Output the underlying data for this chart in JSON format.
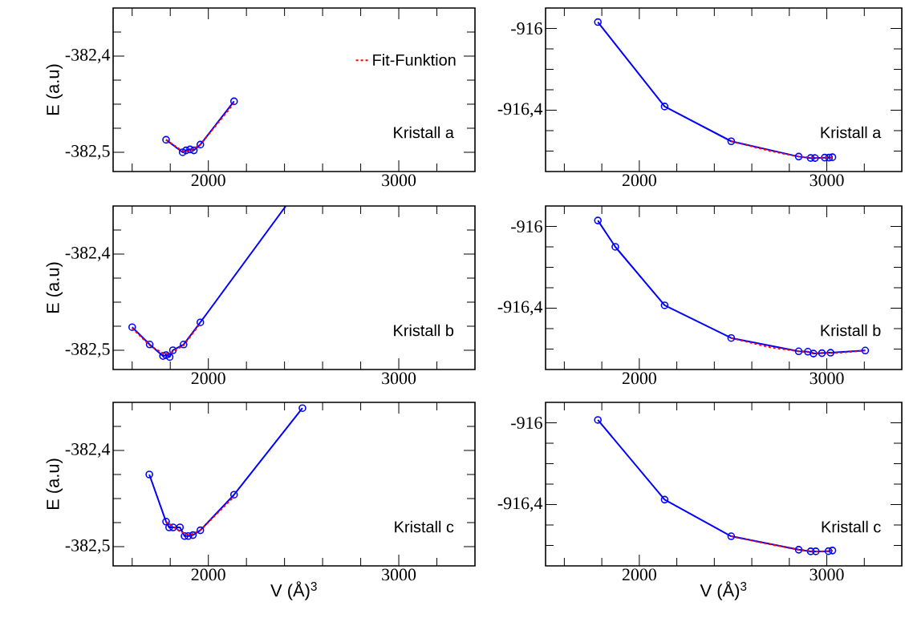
{
  "chart_data": [
    {
      "type": "line",
      "ylabel": "E (a.u)",
      "annotations": [
        "Kristall a"
      ],
      "legend": "top right",
      "xlim": [
        1500,
        3400
      ],
      "ylim": [
        -382.52,
        -382.35
      ],
      "xticks": [
        {
          "value": 1600,
          "label": null
        },
        {
          "value": 1800,
          "label": null
        },
        2000,
        {
          "value": 2200,
          "label": null
        },
        {
          "value": 2400,
          "label": null
        },
        {
          "value": 2600,
          "label": null
        },
        {
          "value": 2800,
          "label": null
        },
        3000,
        {
          "value": 3200,
          "label": null
        }
      ],
      "yticks": [
        {
          "value": -382.5,
          "label": "-382,5"
        },
        {
          "value": -382.475,
          "label": null
        },
        {
          "value": -382.45,
          "label": null
        },
        {
          "value": -382.425,
          "label": null
        },
        {
          "value": -382.4,
          "label": "-382,4"
        },
        {
          "value": -382.375,
          "label": null
        }
      ],
      "series": [
        {
          "color": "#0000ff",
          "marker": "circle",
          "line_style": "solid",
          "x": [
            1778,
            1865,
            1883,
            1904,
            1924,
            1958,
            2135
          ],
          "values": [
            -382.487,
            -382.5,
            -382.498,
            -382.497,
            -382.498,
            -382.492,
            -382.447
          ]
        },
        {
          "name": "Fit-Funktion",
          "color": "#ff0000",
          "marker": "none",
          "line_style": "dashed",
          "x": [
            1778,
            1865,
            1900,
            1958,
            2135
          ],
          "values": [
            -382.487,
            -382.499,
            -382.499,
            -382.492,
            -382.449
          ]
        }
      ]
    },
    {
      "type": "line",
      "annotations": [
        "Kristall a"
      ],
      "xlim": [
        1500,
        3400
      ],
      "ylim": [
        -916.7,
        -915.9
      ],
      "xticks": [
        {
          "value": 1600,
          "label": null
        },
        {
          "value": 1800,
          "label": null
        },
        2000,
        {
          "value": 2200,
          "label": null
        },
        {
          "value": 2400,
          "label": null
        },
        {
          "value": 2600,
          "label": null
        },
        {
          "value": 2800,
          "label": null
        },
        3000,
        {
          "value": 3200,
          "label": null
        }
      ],
      "yticks": [
        {
          "value": -916.6,
          "label": null
        },
        {
          "value": -916.5,
          "label": null
        },
        {
          "value": -916.4,
          "label": "-916,4"
        },
        {
          "value": -916.3,
          "label": null
        },
        {
          "value": -916.2,
          "label": null
        },
        {
          "value": -916.1,
          "label": null
        },
        -916
      ],
      "series": [
        {
          "color": "#0000ff",
          "marker": "circle",
          "line_style": "solid",
          "x": [
            1779,
            2135,
            2490,
            2850,
            2914,
            2937,
            2989,
            3012,
            3030
          ],
          "values": [
            -915.969,
            -916.382,
            -916.552,
            -916.627,
            -916.634,
            -916.634,
            -916.632,
            -916.632,
            -916.63
          ]
        },
        {
          "color": "#ff0000",
          "marker": "none",
          "line_style": "dashed",
          "x": [
            2490,
            2700,
            2850,
            2950,
            3030
          ],
          "values": [
            -916.552,
            -916.6,
            -916.627,
            -916.634,
            -916.632
          ]
        }
      ]
    },
    {
      "type": "line",
      "ylabel": "E (a.u)",
      "annotations": [
        "Kristall b"
      ],
      "xlim": [
        1500,
        3400
      ],
      "ylim": [
        -382.52,
        -382.35
      ],
      "xticks": [
        {
          "value": 1600,
          "label": null
        },
        {
          "value": 1800,
          "label": null
        },
        2000,
        {
          "value": 2200,
          "label": null
        },
        {
          "value": 2400,
          "label": null
        },
        {
          "value": 2600,
          "label": null
        },
        {
          "value": 2800,
          "label": null
        },
        3000,
        {
          "value": 3200,
          "label": null
        }
      ],
      "yticks": [
        {
          "value": -382.5,
          "label": "-382,5"
        },
        {
          "value": -382.475,
          "label": null
        },
        {
          "value": -382.45,
          "label": null
        },
        {
          "value": -382.425,
          "label": null
        },
        {
          "value": -382.4,
          "label": "-382,4"
        },
        {
          "value": -382.375,
          "label": null
        }
      ],
      "series": [
        {
          "color": "#0000ff",
          "marker": "circle",
          "line_style": "solid",
          "x": [
            1600,
            1692,
            1762,
            1778,
            1797,
            1814,
            1870,
            1958
          ],
          "values": [
            -382.476,
            -382.494,
            -382.506,
            -382.505,
            -382.507,
            -382.5,
            -382.494,
            -382.471
          ]
        },
        {
          "color": "#0000ff",
          "marker": "none",
          "line_style": "solid",
          "x": [
            1958,
            2407
          ],
          "values": [
            -382.471,
            -382.35
          ]
        },
        {
          "color": "#ff0000",
          "marker": "none",
          "line_style": "dashed",
          "x": [
            1600,
            1692,
            1770,
            1800,
            1870,
            1950
          ],
          "values": [
            -382.477,
            -382.495,
            -382.504,
            -382.503,
            -382.495,
            -382.474
          ]
        }
      ]
    },
    {
      "type": "line",
      "annotations": [
        "Kristall b"
      ],
      "xlim": [
        1500,
        3400
      ],
      "ylim": [
        -916.7,
        -915.9
      ],
      "xticks": [
        {
          "value": 1600,
          "label": null
        },
        {
          "value": 1800,
          "label": null
        },
        2000,
        {
          "value": 2200,
          "label": null
        },
        {
          "value": 2400,
          "label": null
        },
        {
          "value": 2600,
          "label": null
        },
        {
          "value": 2800,
          "label": null
        },
        3000,
        {
          "value": 3200,
          "label": null
        }
      ],
      "yticks": [
        {
          "value": -916.6,
          "label": null
        },
        {
          "value": -916.5,
          "label": null
        },
        {
          "value": -916.4,
          "label": "-916,4"
        },
        {
          "value": -916.3,
          "label": null
        },
        {
          "value": -916.2,
          "label": null
        },
        {
          "value": -916.1,
          "label": null
        },
        -916
      ],
      "series": [
        {
          "color": "#0000ff",
          "marker": "circle",
          "line_style": "solid",
          "x": [
            1779,
            1872,
            2135,
            2490,
            2850,
            2899,
            2929,
            2974,
            3020,
            3205
          ],
          "values": [
            -915.971,
            -916.1,
            -916.386,
            -916.546,
            -916.611,
            -916.613,
            -916.622,
            -916.62,
            -916.618,
            -916.607
          ]
        },
        {
          "color": "#ff0000",
          "marker": "none",
          "line_style": "dashed",
          "x": [
            2490,
            2700,
            2850,
            2950,
            3050,
            3205
          ],
          "values": [
            -916.546,
            -916.592,
            -916.611,
            -916.62,
            -916.619,
            -916.607
          ]
        }
      ]
    },
    {
      "type": "line",
      "ylabel": "E (a.u)",
      "xlabel": "V (Å)$^{3}$",
      "annotations": [
        "Kristall c"
      ],
      "xlim": [
        1500,
        3400
      ],
      "ylim": [
        -382.52,
        -382.35
      ],
      "xticks": [
        {
          "value": 1600,
          "label": null
        },
        {
          "value": 1800,
          "label": null
        },
        2000,
        {
          "value": 2200,
          "label": null
        },
        {
          "value": 2400,
          "label": null
        },
        {
          "value": 2600,
          "label": null
        },
        {
          "value": 2800,
          "label": null
        },
        3000,
        {
          "value": 3200,
          "label": null
        }
      ],
      "yticks": [
        {
          "value": -382.5,
          "label": "-382,5"
        },
        {
          "value": -382.475,
          "label": null
        },
        {
          "value": -382.45,
          "label": null
        },
        {
          "value": -382.425,
          "label": null
        },
        {
          "value": -382.4,
          "label": "-382,4"
        },
        {
          "value": -382.375,
          "label": null
        }
      ],
      "series": [
        {
          "color": "#0000ff",
          "marker": "circle",
          "line_style": "solid",
          "x": [
            1690,
            1778,
            1794,
            1815,
            1851,
            1875,
            1895,
            1919,
            1958,
            2135,
            2494
          ],
          "values": [
            -382.425,
            -382.474,
            -382.48,
            -382.48,
            -382.48,
            -382.489,
            -382.489,
            -382.488,
            -382.483,
            -382.446,
            -382.356
          ]
        },
        {
          "color": "#ff0000",
          "marker": "none",
          "line_style": "dashed",
          "x": [
            1778,
            1850,
            1900,
            1958,
            2135
          ],
          "values": [
            -382.474,
            -382.484,
            -382.488,
            -382.483,
            -382.448
          ]
        }
      ]
    },
    {
      "type": "line",
      "xlabel": "V (Å)$^{3}$",
      "annotations": [
        "Kristall c"
      ],
      "xlim": [
        1500,
        3400
      ],
      "ylim": [
        -916.7,
        -915.9
      ],
      "xticks": [
        {
          "value": 1600,
          "label": null
        },
        {
          "value": 1800,
          "label": null
        },
        2000,
        {
          "value": 2200,
          "label": null
        },
        {
          "value": 2400,
          "label": null
        },
        {
          "value": 2600,
          "label": null
        },
        {
          "value": 2800,
          "label": null
        },
        3000,
        {
          "value": 3200,
          "label": null
        }
      ],
      "yticks": [
        {
          "value": -916.6,
          "label": null
        },
        {
          "value": -916.5,
          "label": null
        },
        {
          "value": -916.4,
          "label": "-916,4"
        },
        {
          "value": -916.3,
          "label": null
        },
        {
          "value": -916.2,
          "label": null
        },
        {
          "value": -916.1,
          "label": null
        },
        -916
      ],
      "series": [
        {
          "color": "#0000ff",
          "marker": "circle",
          "line_style": "solid",
          "x": [
            1779,
            2135,
            2490,
            2850,
            2914,
            2941,
            3009,
            3030
          ],
          "values": [
            -915.986,
            -916.376,
            -916.555,
            -916.621,
            -916.629,
            -916.629,
            -916.628,
            -916.625
          ]
        },
        {
          "color": "#ff0000",
          "marker": "none",
          "line_style": "dashed",
          "x": [
            2490,
            2700,
            2850,
            2950,
            3030
          ],
          "values": [
            -916.555,
            -916.595,
            -916.621,
            -916.63,
            -916.626
          ]
        }
      ]
    }
  ]
}
